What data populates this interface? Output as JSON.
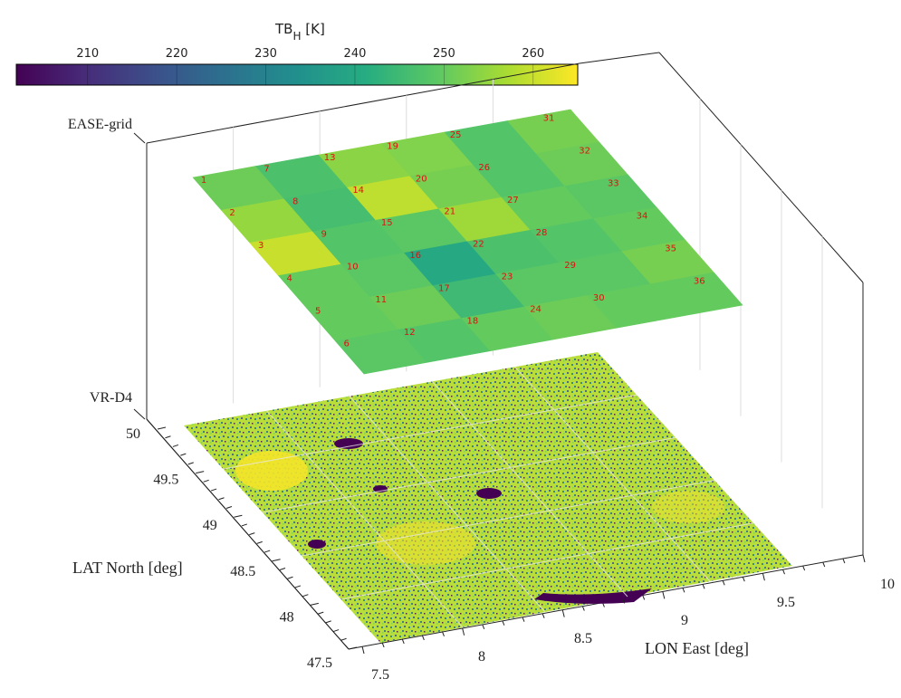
{
  "colorbar": {
    "title_main": "TB",
    "title_sub": "H",
    "title_unit": " [K]",
    "ticks": [
      210,
      220,
      230,
      240,
      250,
      260
    ],
    "range": [
      202,
      265
    ],
    "colormap": [
      "#440154",
      "#472c7a",
      "#3b518b",
      "#2c718e",
      "#21908d",
      "#27ad81",
      "#5cc863",
      "#aadc32",
      "#fde725"
    ]
  },
  "labels": {
    "ease_grid": "EASE-grid",
    "vr_d4": "VR-D4",
    "lat": "LAT North [deg]",
    "lon": "LON East [deg]"
  },
  "axes": {
    "lat_ticks": [
      "50",
      "49.5",
      "49",
      "48.5",
      "48",
      "47.5"
    ],
    "lon_ticks": [
      "7.5",
      "8",
      "8.5",
      "9",
      "9.5",
      "10"
    ],
    "lat_range": [
      47.5,
      50
    ],
    "lon_range": [
      7.5,
      10
    ]
  },
  "chart_data": {
    "type": "heatmap",
    "title": "",
    "xlabel": "LON East [deg]",
    "ylabel": "LAT North [deg]",
    "colorbar_label": "TB_H [K]",
    "xlim": [
      7.5,
      10
    ],
    "ylim": [
      47.5,
      50
    ],
    "ease_grid": {
      "rows": 6,
      "cols": 6,
      "cell_ids": [
        1,
        2,
        3,
        4,
        5,
        6,
        7,
        8,
        9,
        10,
        11,
        12,
        13,
        14,
        15,
        16,
        17,
        18,
        19,
        20,
        21,
        22,
        23,
        24,
        25,
        26,
        27,
        28,
        29,
        30,
        31,
        32,
        33,
        34,
        35,
        36
      ],
      "tb_h_K": [
        251,
        255,
        260,
        250,
        250,
        249,
        247,
        246,
        248,
        249,
        251,
        248,
        254,
        259,
        249,
        240,
        245,
        250,
        253,
        252,
        256,
        247,
        249,
        251,
        248,
        248,
        250,
        248,
        249,
        250,
        252,
        251,
        249,
        250,
        252,
        250
      ]
    }
  }
}
